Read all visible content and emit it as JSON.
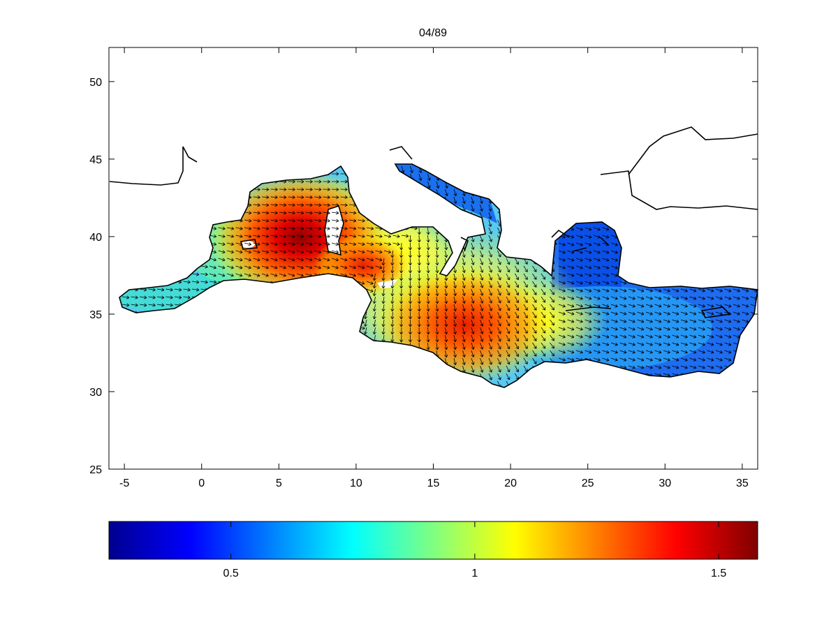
{
  "title": "04/89",
  "map": {
    "xaxis": {
      "range": [
        -6,
        36
      ],
      "ticks": [
        -5,
        0,
        5,
        10,
        15,
        20,
        25,
        30,
        35
      ]
    },
    "yaxis": {
      "range": [
        25,
        52.2
      ],
      "ticks": [
        25,
        30,
        35,
        40,
        45,
        50
      ]
    },
    "grid": false,
    "field": "scalar magnitude shaded with jet colormap, overlaid with vector arrows",
    "colormap": "jet",
    "high_centers": [
      {
        "lon": 6.5,
        "lat": 39.5,
        "value": 1.6
      },
      {
        "lon": 11,
        "lat": 37.8,
        "value": 1.45
      },
      {
        "lon": 17.5,
        "lat": 34.3,
        "value": 1.4
      }
    ]
  },
  "colorbar": {
    "range": [
      0.25,
      1.58
    ],
    "ticks": [
      0.5,
      1,
      1.5
    ],
    "tick_labels": [
      "0.5",
      "1",
      "1.5"
    ],
    "colors": [
      "#00008f",
      "#0000ff",
      "#0080ff",
      "#00ffff",
      "#80ff80",
      "#ffff00",
      "#ff8000",
      "#ff0000",
      "#800000"
    ]
  }
}
